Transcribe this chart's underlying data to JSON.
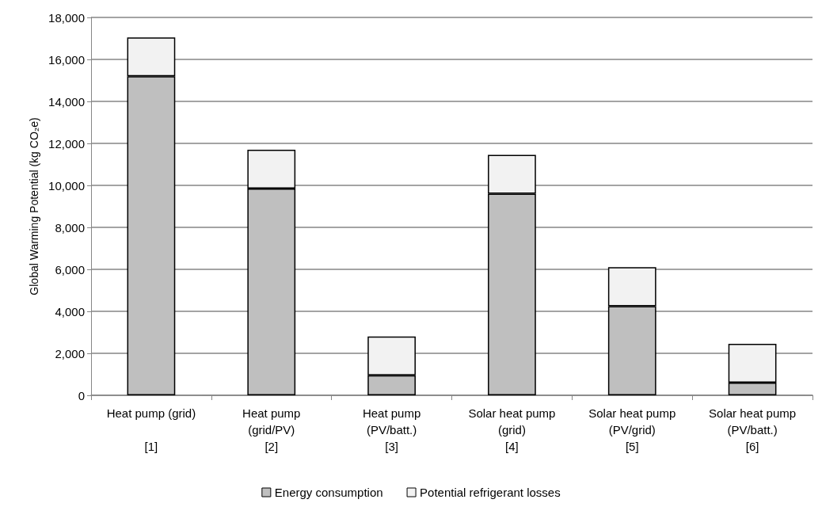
{
  "chart_data": {
    "type": "bar",
    "stacked": true,
    "ylabel": "Global Warming Potential (kg CO₂e)",
    "categories": [
      "Heat pump (grid)\n\n[1]",
      "Heat pump\n(grid/PV)\n[2]",
      "Heat pump\n(PV/batt.)\n[3]",
      "Solar heat pump\n(grid)\n[4]",
      "Solar heat pump\n(PV/grid)\n[5]",
      "Solar heat pump\n(PV/batt.)\n[6]"
    ],
    "series": [
      {
        "name": "Energy consumption",
        "color": "#bfbfbf",
        "values": [
          15200,
          9850,
          950,
          9600,
          4250,
          600
        ]
      },
      {
        "name": "Potential refrigerant losses",
        "color": "#f2f2f2",
        "values": [
          1850,
          1850,
          1850,
          1850,
          1850,
          1850
        ]
      }
    ],
    "ylim": [
      0,
      18000
    ],
    "yticks": [
      0,
      {
        "value": 2000,
        "label": "2,000"
      },
      {
        "value": 4000,
        "label": "4,000"
      },
      {
        "value": 6000,
        "label": "6,000"
      },
      {
        "value": 8000,
        "label": "8,000"
      },
      {
        "value": 10000,
        "label": "10,000"
      },
      {
        "value": 12000,
        "label": "12,000"
      },
      {
        "value": 14000,
        "label": "14,000"
      },
      {
        "value": 16000,
        "label": "16,000"
      },
      {
        "value": 18000,
        "label": "18,000"
      }
    ],
    "grid": "y",
    "legend": "bottom"
  }
}
